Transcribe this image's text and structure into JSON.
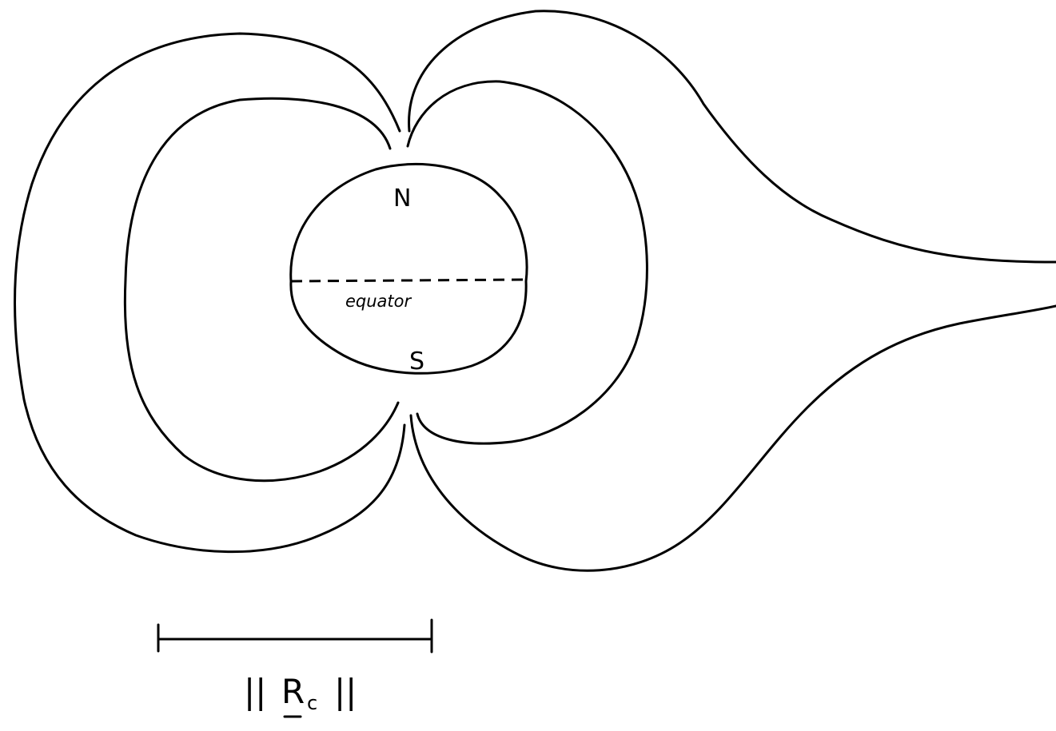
{
  "diagram": {
    "north_label": "N",
    "south_label": "S",
    "equator_label": "equator",
    "scale": {
      "prefix": "||",
      "symbol": "R",
      "subscript": "c",
      "suffix": "||"
    }
  }
}
